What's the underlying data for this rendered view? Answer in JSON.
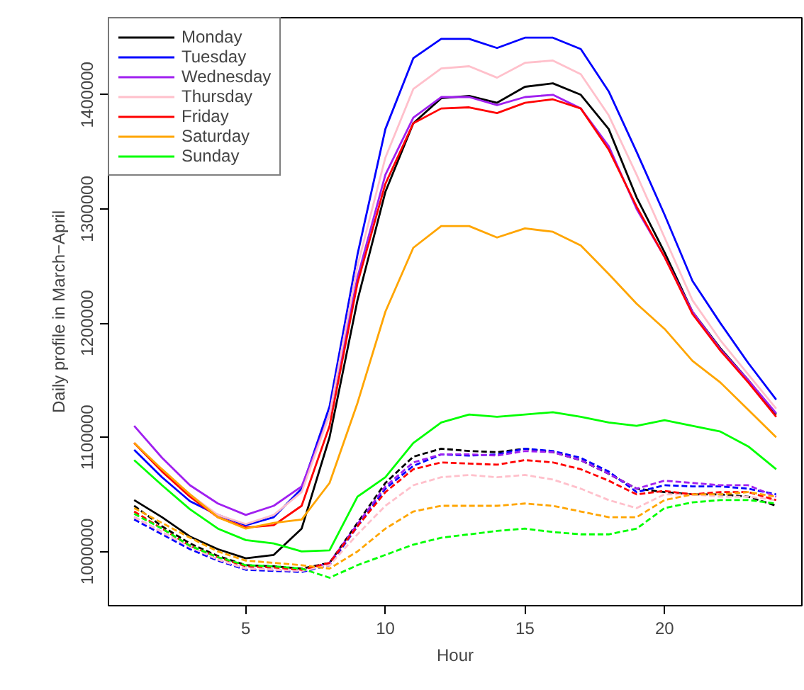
{
  "chart_data": {
    "type": "line",
    "xlabel": "Hour",
    "ylabel": "Daily profile in March−April",
    "x": [
      1,
      2,
      3,
      4,
      5,
      6,
      7,
      8,
      9,
      10,
      11,
      12,
      13,
      14,
      15,
      16,
      17,
      18,
      19,
      20,
      21,
      22,
      23,
      24
    ],
    "xlim": [
      0.08,
      24.92
    ],
    "ylim": [
      952500,
      1467500
    ],
    "xticks": [
      5,
      10,
      15,
      20
    ],
    "yticks": [
      1000000,
      1100000,
      1200000,
      1300000,
      1400000
    ],
    "grid": false,
    "legend": "top left",
    "marker": "none",
    "series": [
      {
        "name": "Monday",
        "color": "#000000",
        "line_style": "solid",
        "values": [
          1045000,
          1030000,
          1013000,
          1002000,
          994000,
          997000,
          1020000,
          1100000,
          1220000,
          1315000,
          1375000,
          1397000,
          1399000,
          1393000,
          1407000,
          1410000,
          1400000,
          1370000,
          1310000,
          1262000,
          1210000,
          1178000,
          1150000,
          1120000
        ]
      },
      {
        "name": "Tuesday",
        "color": "#0000ff",
        "line_style": "solid",
        "values": [
          1089000,
          1065000,
          1044000,
          1032000,
          1023000,
          1030000,
          1055000,
          1127000,
          1260000,
          1370000,
          1432000,
          1449000,
          1449000,
          1441000,
          1450000,
          1450000,
          1440000,
          1403000,
          1350000,
          1295000,
          1237000,
          1200000,
          1165000,
          1133000
        ]
      },
      {
        "name": "Wednesday",
        "color": "#a020f0",
        "line_style": "solid",
        "values": [
          1110000,
          1082000,
          1058000,
          1042000,
          1032000,
          1040000,
          1057000,
          1120000,
          1240000,
          1330000,
          1380000,
          1398000,
          1398000,
          1391000,
          1398000,
          1400000,
          1388000,
          1355000,
          1300000,
          1258000,
          1210000,
          1177000,
          1150000,
          1121000
        ]
      },
      {
        "name": "Thursday",
        "color": "#ffc0cb",
        "line_style": "solid",
        "values": [
          1095000,
          1070000,
          1050000,
          1032000,
          1024000,
          1032000,
          1052000,
          1120000,
          1250000,
          1345000,
          1405000,
          1423000,
          1425000,
          1415000,
          1428000,
          1430000,
          1418000,
          1382000,
          1330000,
          1275000,
          1220000,
          1185000,
          1155000,
          1125000
        ]
      },
      {
        "name": "Friday",
        "color": "#ff0000",
        "line_style": "solid",
        "values": [
          1095000,
          1070000,
          1048000,
          1030000,
          1021000,
          1023000,
          1040000,
          1110000,
          1235000,
          1322000,
          1375000,
          1388000,
          1389000,
          1384000,
          1393000,
          1396000,
          1388000,
          1352000,
          1302000,
          1258000,
          1208000,
          1176000,
          1148000,
          1118000
        ]
      },
      {
        "name": "Saturday",
        "color": "#ffa500",
        "line_style": "solid",
        "values": [
          1095000,
          1072000,
          1050000,
          1030000,
          1020000,
          1025000,
          1028000,
          1060000,
          1130000,
          1210000,
          1266000,
          1285000,
          1285000,
          1275000,
          1283000,
          1280000,
          1268000,
          1243000,
          1217000,
          1195000,
          1167000,
          1148000,
          1124000,
          1100000
        ]
      },
      {
        "name": "Sunday",
        "color": "#00ff00",
        "line_style": "solid",
        "values": [
          1080000,
          1058000,
          1037000,
          1020000,
          1010000,
          1007000,
          1000000,
          1001000,
          1048000,
          1065000,
          1095000,
          1113000,
          1120000,
          1118000,
          1120000,
          1122000,
          1118000,
          1113000,
          1110000,
          1115000,
          1110000,
          1105000,
          1092000,
          1072000
        ]
      },
      {
        "color": "#000000",
        "line_style": "dashed",
        "values": [
          1040000,
          1022000,
          1007000,
          996000,
          988000,
          987000,
          985000,
          990000,
          1025000,
          1060000,
          1083000,
          1090000,
          1088000,
          1087000,
          1090000,
          1087000,
          1080000,
          1068000,
          1055000,
          1052000,
          1050000,
          1050000,
          1048000,
          1040000
        ]
      },
      {
        "color": "#0000ff",
        "line_style": "dashed",
        "values": [
          1028000,
          1015000,
          1002000,
          992000,
          984000,
          983000,
          982000,
          988000,
          1022000,
          1055000,
          1075000,
          1085000,
          1084000,
          1085000,
          1090000,
          1088000,
          1082000,
          1070000,
          1052000,
          1058000,
          1057000,
          1057000,
          1055000,
          1050000
        ]
      },
      {
        "color": "#a020f0",
        "line_style": "dashed",
        "values": [
          1030000,
          1017000,
          1004000,
          993000,
          985000,
          984000,
          983000,
          990000,
          1024000,
          1057000,
          1078000,
          1085000,
          1085000,
          1084000,
          1088000,
          1087000,
          1080000,
          1068000,
          1055000,
          1062000,
          1060000,
          1058000,
          1058000,
          1048000
        ]
      },
      {
        "color": "#ffc0cb",
        "line_style": "dashed",
        "values": [
          1030000,
          1017000,
          1004000,
          993000,
          985000,
          984000,
          983000,
          988000,
          1015000,
          1040000,
          1058000,
          1065000,
          1067000,
          1065000,
          1067000,
          1063000,
          1055000,
          1045000,
          1038000,
          1050000,
          1050000,
          1048000,
          1048000,
          1045000
        ]
      },
      {
        "color": "#ff0000",
        "line_style": "dashed",
        "values": [
          1035000,
          1020000,
          1005000,
          995000,
          987000,
          986000,
          984000,
          990000,
          1022000,
          1052000,
          1072000,
          1078000,
          1077000,
          1076000,
          1080000,
          1078000,
          1072000,
          1062000,
          1050000,
          1053000,
          1050000,
          1052000,
          1052000,
          1045000
        ]
      },
      {
        "color": "#ffa500",
        "line_style": "dashed",
        "values": [
          1038000,
          1025000,
          1012000,
          1000000,
          992000,
          990000,
          988000,
          985000,
          1000000,
          1020000,
          1035000,
          1040000,
          1040000,
          1040000,
          1042000,
          1040000,
          1035000,
          1030000,
          1030000,
          1045000,
          1050000,
          1050000,
          1052000,
          1048000
        ]
      },
      {
        "color": "#00ff00",
        "line_style": "dashed",
        "values": [
          1033000,
          1020000,
          1005000,
          995000,
          988000,
          987000,
          985000,
          977000,
          988000,
          997000,
          1006000,
          1012000,
          1015000,
          1018000,
          1020000,
          1017000,
          1015000,
          1015000,
          1020000,
          1038000,
          1043000,
          1045000,
          1045000,
          1042000
        ]
      }
    ]
  }
}
